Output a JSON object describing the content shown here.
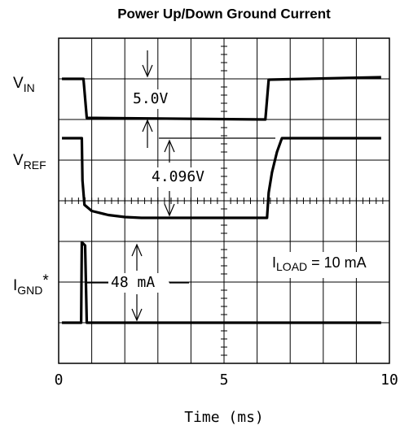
{
  "chart_data": {
    "type": "line",
    "title": "Power Up/Down Ground Current",
    "xlabel": "Time (ms)",
    "xlim": [
      0,
      10
    ],
    "ylim": [
      0,
      8
    ],
    "xticks": [
      0,
      5,
      10
    ],
    "xgrid": [
      0,
      1,
      2,
      3,
      4,
      5,
      6,
      7,
      8,
      9,
      10
    ],
    "ygrid": [
      0,
      1,
      2,
      3,
      4,
      5,
      6,
      7,
      8
    ],
    "grid": true,
    "series": [
      {
        "name": "V",
        "sub": "IN",
        "color": "#000000",
        "x": [
          0.1,
          0.75,
          0.85,
          6.25,
          6.35,
          9.75
        ],
        "values": [
          7.0,
          7.0,
          6.04,
          6.0,
          6.98,
          7.04
        ]
      },
      {
        "name": "V",
        "sub": "REF",
        "color": "#000000",
        "x": [
          0.1,
          0.7,
          0.72,
          0.78,
          1.0,
          1.5,
          2.0,
          2.5,
          6.3,
          6.35,
          6.45,
          6.6,
          6.75,
          9.75
        ],
        "values": [
          5.54,
          5.54,
          4.5,
          3.9,
          3.75,
          3.65,
          3.6,
          3.58,
          3.58,
          4.2,
          4.7,
          5.2,
          5.54,
          5.54
        ]
      },
      {
        "name": "I",
        "sub": "GND",
        "suffix": "*",
        "color": "#000000",
        "x": [
          0.1,
          0.68,
          0.7,
          0.8,
          0.85,
          9.75
        ],
        "values": [
          1.0,
          1.0,
          2.98,
          2.9,
          1.0,
          1.0
        ]
      }
    ],
    "annotations": [
      "5.0V",
      "4.096V",
      "48 mA"
    ],
    "load_label": {
      "name": "I",
      "sub": "LOAD",
      "text": " = 10 mA"
    }
  }
}
